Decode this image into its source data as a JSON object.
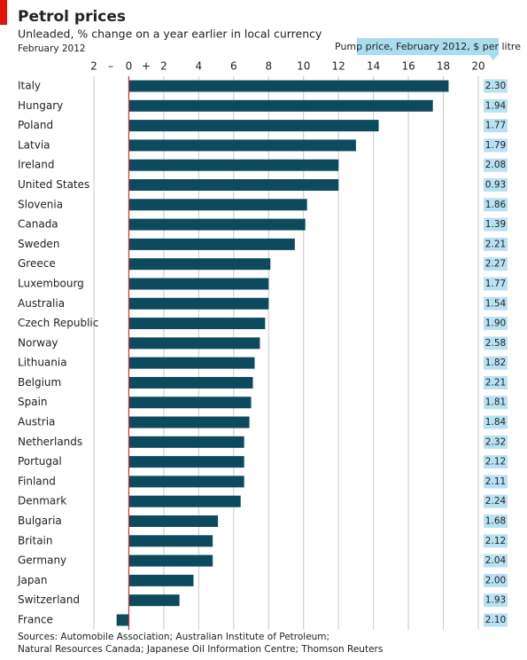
{
  "chart_data": {
    "type": "bar",
    "orientation": "horizontal",
    "title": "Petrol prices",
    "subtitle": "Unleaded, % change on a year earlier in local currency",
    "date": "February 2012",
    "negative_sign": "–",
    "positive_sign": "+",
    "categories": [
      "Italy",
      "Hungary",
      "Poland",
      "Latvia",
      "Ireland",
      "United States",
      "Slovenia",
      "Canada",
      "Sweden",
      "Greece",
      "Luxembourg",
      "Australia",
      "Czech Republic",
      "Norway",
      "Lithuania",
      "Belgium",
      "Spain",
      "Austria",
      "Netherlands",
      "Portugal",
      "Finland",
      "Denmark",
      "Bulgaria",
      "Britain",
      "Germany",
      "Japan",
      "Switzerland",
      "France"
    ],
    "values": [
      18.3,
      17.4,
      14.3,
      13.0,
      12.0,
      12.0,
      10.2,
      10.1,
      9.5,
      8.1,
      8.0,
      8.0,
      7.8,
      7.5,
      7.2,
      7.1,
      7.0,
      6.9,
      6.6,
      6.6,
      6.6,
      6.4,
      5.1,
      4.8,
      4.8,
      3.7,
      2.9,
      -0.7
    ],
    "color": "#0d4a5e",
    "xlim": [
      -2,
      20
    ],
    "xticks": [
      {
        "value": -2,
        "label": "2"
      },
      0,
      2,
      4,
      6,
      8,
      10,
      12,
      14,
      16,
      18,
      20
    ],
    "grid": true,
    "pump_price": {
      "title": "Pump price, February 2012, $ per litre",
      "color": "#b8e2f3",
      "values": [
        2.3,
        1.94,
        1.77,
        1.79,
        2.08,
        0.93,
        1.86,
        1.39,
        2.21,
        2.27,
        1.77,
        1.54,
        1.9,
        2.58,
        1.82,
        2.21,
        1.81,
        1.84,
        2.32,
        2.12,
        2.11,
        2.24,
        1.68,
        2.12,
        2.04,
        2.0,
        1.93,
        2.1
      ],
      "value_labels": [
        "2.30",
        "1.94",
        "1.77",
        "1.79",
        "2.08",
        "0.93",
        "1.86",
        "1.39",
        "2.21",
        "2.27",
        "1.77",
        "1.54",
        "1.90",
        "2.58",
        "1.82",
        "2.21",
        "1.81",
        "1.84",
        "2.32",
        "2.12",
        "2.11",
        "2.24",
        "1.68",
        "2.12",
        "2.04",
        "2.00",
        "1.93",
        "2.10"
      ]
    },
    "source": [
      "Sources: Automobile Association; Australian Institute of Petroleum;",
      "Natural Resources Canada; Japanese Oil Information Centre; Thomson Reuters"
    ]
  }
}
